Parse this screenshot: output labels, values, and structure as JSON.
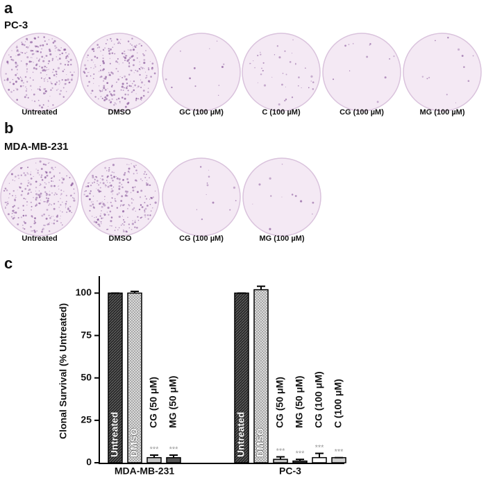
{
  "panels": {
    "a": {
      "letter": "a",
      "title": "PC-3",
      "dishes": [
        "Untreated",
        "DMSO",
        "GC (100 µM)",
        "C (100 µM)",
        "CG (100 µM)",
        "MG (100 µM)"
      ]
    },
    "b": {
      "letter": "b",
      "title": "MDA-MB-231",
      "dishes": [
        "Untreated",
        "DMSO",
        "CG (100 µM)",
        "MG (100 µM)"
      ]
    }
  },
  "chart_data": {
    "type": "bar",
    "panel_label": "c",
    "y_label": "Clonal Survival (% Untreated)",
    "ylim": [
      0,
      110
    ],
    "yticks": [
      0,
      25,
      50,
      75,
      100
    ],
    "groups": [
      {
        "name": "MDA-MB-231",
        "bars": [
          {
            "label": "Untreated",
            "value": 100,
            "error": 0,
            "color": "url(#hatch-dark)"
          },
          {
            "label": "DMSO",
            "value": 100,
            "error": 1,
            "color": "url(#cross-light)"
          },
          {
            "label": "CG (50 μM)",
            "value": 3,
            "error": 1.5,
            "color": "#c4c4c4",
            "annotation": "***"
          },
          {
            "label": "MG (50 μM)",
            "value": 3,
            "error": 1.5,
            "color": "#555555",
            "annotation": "***"
          }
        ]
      },
      {
        "name": "PC-3",
        "bars": [
          {
            "label": "Untreated",
            "value": 100,
            "error": 0,
            "color": "url(#hatch-dark)"
          },
          {
            "label": "DMSO",
            "value": 102,
            "error": 2,
            "color": "url(#cross-light)"
          },
          {
            "label": "CG (50 μM)",
            "value": 2,
            "error": 1.5,
            "color": "#c4c4c4",
            "annotation": "***"
          },
          {
            "label": "MG (50 μM)",
            "value": 1,
            "error": 1,
            "color": "#555555",
            "annotation": "***"
          },
          {
            "label": "CG (100 μM)",
            "value": 3,
            "error": 2.5,
            "color": "#ffffff",
            "annotation": "***"
          },
          {
            "label": "C (100 μM)",
            "value": 3,
            "error": 0,
            "color": "#cfcfcf",
            "annotation": "***"
          }
        ]
      }
    ]
  }
}
